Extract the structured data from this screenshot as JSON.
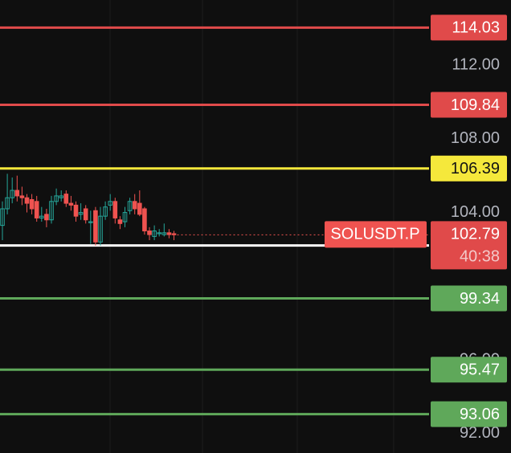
{
  "chart_data": {
    "type": "candlestick",
    "symbol": "SOLUSDT.P",
    "last_price": 102.79,
    "countdown": "40:38",
    "up_color": "#26a69a",
    "down_color": "#ef5350",
    "ylim": [
      90.95,
      115.53
    ],
    "yticks": [
      {
        "value": 92,
        "label": "92.00"
      },
      {
        "value": 96,
        "label": "96.00"
      },
      {
        "value": 104,
        "label": "104.00"
      },
      {
        "value": 108,
        "label": "108.00"
      },
      {
        "value": 112,
        "label": "112.00"
      }
    ],
    "open": [
      103.3,
      104.2,
      104.8,
      105.2,
      104.9,
      104.8,
      104.7,
      104.6,
      103.7,
      103.9,
      103.6,
      104.6,
      104.8,
      105.0,
      104.5,
      104.4,
      103.9,
      104.2,
      103.5,
      104.1,
      102.4,
      103.8,
      104.4,
      104.6,
      103.6,
      103.5,
      104.1,
      104.6,
      104.5,
      104.2,
      103.0,
      102.7,
      102.9,
      102.8,
      102.9,
      102.85
    ],
    "high": [
      104.6,
      106.1,
      105.9,
      106.0,
      105.4,
      105.0,
      105.0,
      104.9,
      104.3,
      104.2,
      104.9,
      105.3,
      105.2,
      105.2,
      104.9,
      104.6,
      104.5,
      104.4,
      104.1,
      104.3,
      104.3,
      104.6,
      105.0,
      104.8,
      103.8,
      104.3,
      104.8,
      105.0,
      105.2,
      104.3,
      103.2,
      103.3,
      103.1,
      103.4,
      103.1,
      103.0
    ],
    "low": [
      102.5,
      103.9,
      104.5,
      104.6,
      104.4,
      104.0,
      103.9,
      103.5,
      103.5,
      103.2,
      103.4,
      104.4,
      104.6,
      104.3,
      104.1,
      103.5,
      103.6,
      103.4,
      102.3,
      102.2,
      102.2,
      103.6,
      104.1,
      103.4,
      103.1,
      103.2,
      103.9,
      103.9,
      103.8,
      102.8,
      102.5,
      102.5,
      102.7,
      102.7,
      102.6,
      102.5
    ],
    "close": [
      104.2,
      104.8,
      105.2,
      104.9,
      104.8,
      104.5,
      104.2,
      103.7,
      103.8,
      103.6,
      104.6,
      104.9,
      104.9,
      104.5,
      104.4,
      103.8,
      104.0,
      103.6,
      103.5,
      102.4,
      103.8,
      104.3,
      104.6,
      103.7,
      103.4,
      104.0,
      104.6,
      104.2,
      103.9,
      103.0,
      102.8,
      103.0,
      102.9,
      102.9,
      102.8,
      102.79
    ],
    "levels": [
      {
        "value": 114.03,
        "color": "#e04a4a"
      },
      {
        "value": 109.84,
        "color": "#e04a4a"
      },
      {
        "value": 106.39,
        "color": "#f5e83b"
      },
      {
        "value": 102.21,
        "color": "#ffffff"
      },
      {
        "value": 99.34,
        "color": "#5fa85a"
      },
      {
        "value": 95.47,
        "color": "#5fa85a"
      },
      {
        "value": 93.06,
        "color": "#5fa85a"
      }
    ]
  }
}
